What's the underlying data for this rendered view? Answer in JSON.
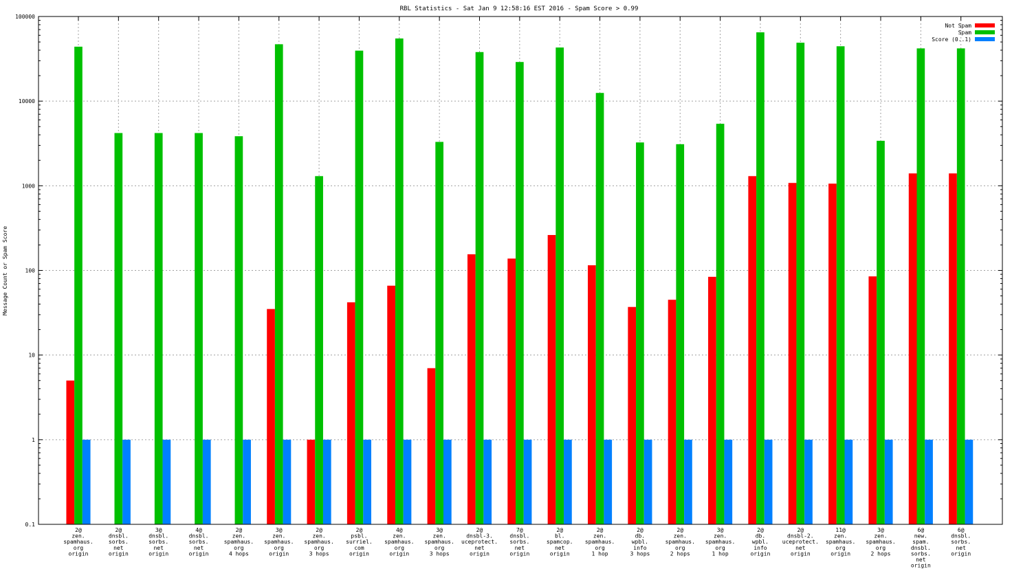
{
  "chart_data": {
    "type": "bar",
    "title": "RBL Statistics - Sat Jan  9 12:58:16 EST 2016 - Spam Score > 0.99",
    "ylabel": "Message Count or Spam Score",
    "xlabel": "",
    "yscale": "log",
    "ylim": [
      0.1,
      100000
    ],
    "yticks": [
      0.1,
      1,
      10,
      100,
      1000,
      10000,
      100000
    ],
    "ytick_labels": [
      "0.1",
      "1",
      "10",
      "100",
      "1000",
      "10000",
      "100000"
    ],
    "grid": true,
    "legend_position": "top-right",
    "categories": [
      [
        "2@",
        "zen.",
        "spamhaus.",
        "org",
        "origin"
      ],
      [
        "2@",
        "dnsbl.",
        "sorbs.",
        "net",
        "origin"
      ],
      [
        "3@",
        "dnsbl.",
        "sorbs.",
        "net",
        "origin"
      ],
      [
        "4@",
        "dnsbl.",
        "sorbs.",
        "net",
        "origin"
      ],
      [
        "2@",
        "zen.",
        "spamhaus.",
        "org",
        "4 hops"
      ],
      [
        "3@",
        "zen.",
        "spamhaus.",
        "org",
        "origin"
      ],
      [
        "2@",
        "zen.",
        "spamhaus.",
        "org",
        "3 hops"
      ],
      [
        "2@",
        "psbl.",
        "surriel.",
        "com",
        "origin"
      ],
      [
        "4@",
        "zen.",
        "spamhaus.",
        "org",
        "origin"
      ],
      [
        "3@",
        "zen.",
        "spamhaus.",
        "org",
        "3 hops"
      ],
      [
        "2@",
        "dnsbl-3.",
        "uceprotect.",
        "net",
        "origin"
      ],
      [
        "7@",
        "dnsbl.",
        "sorbs.",
        "net",
        "origin"
      ],
      [
        "2@",
        "bl.",
        "spamcop.",
        "net",
        "origin"
      ],
      [
        "2@",
        "zen.",
        "spamhaus.",
        "org",
        "1 hop"
      ],
      [
        "2@",
        "db.",
        "wpbl.",
        "info",
        "3 hops"
      ],
      [
        "2@",
        "zen.",
        "spamhaus.",
        "org",
        "2 hops"
      ],
      [
        "3@",
        "zen.",
        "spamhaus.",
        "org",
        "1 hop"
      ],
      [
        "2@",
        "db.",
        "wpbl.",
        "info",
        "origin"
      ],
      [
        "2@",
        "dnsbl-2.",
        "uceprotect.",
        "net",
        "origin"
      ],
      [
        "11@",
        "zen.",
        "spamhaus.",
        "org",
        "origin"
      ],
      [
        "3@",
        "zen.",
        "spamhaus.",
        "org",
        "2 hops"
      ],
      [
        "6@",
        "new.",
        "spam.",
        "dnsbl.",
        "sorbs.",
        "net",
        "origin"
      ],
      [
        "6@",
        "dnsbl.",
        "sorbs.",
        "net",
        "origin"
      ]
    ],
    "series": [
      {
        "name": "Not Spam",
        "color": "#ff0000",
        "values": [
          5,
          null,
          null,
          null,
          null,
          35,
          1,
          42,
          66,
          7,
          155,
          138,
          262,
          115,
          37,
          45,
          84,
          1300,
          1080,
          1060,
          85,
          1400,
          1400
        ]
      },
      {
        "name": "Spam",
        "color": "#00c000",
        "values": [
          44000,
          4200,
          4200,
          4200,
          3850,
          47000,
          1300,
          39500,
          55000,
          3300,
          38000,
          29000,
          43000,
          12500,
          3250,
          3100,
          5400,
          65000,
          49000,
          44500,
          3400,
          42000,
          42000
        ]
      },
      {
        "name": "Score (0..1)",
        "color": "#0080ff",
        "values": [
          1,
          1,
          1,
          1,
          1,
          1,
          1,
          1,
          1,
          1,
          1,
          1,
          1,
          1,
          1,
          1,
          1,
          1,
          1,
          1,
          1,
          1,
          1
        ]
      }
    ]
  }
}
